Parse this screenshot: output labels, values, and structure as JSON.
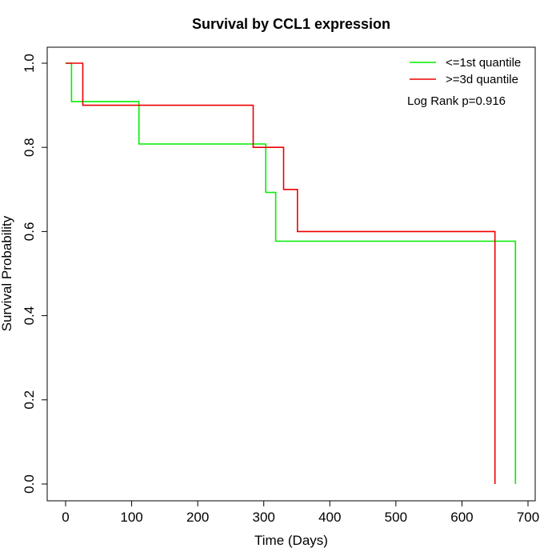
{
  "chart_data": {
    "type": "line",
    "subtype": "kaplan-meier step",
    "title": "Survival by CCL1 expression",
    "xlabel": "Time (Days)",
    "ylabel": "Survival Probability",
    "xlim": [
      0,
      700
    ],
    "ylim": [
      0,
      1
    ],
    "xticks": [
      0,
      100,
      200,
      300,
      400,
      500,
      600,
      700
    ],
    "yticks": [
      "0.0",
      "0.2",
      "0.4",
      "0.6",
      "0.8",
      "1.0"
    ],
    "grid": false,
    "legend_position": "top-right",
    "series": [
      {
        "name": "<=1st quantile",
        "color": "#00ee00",
        "x": [
          0,
          9,
          9,
          111,
          111,
          303,
          303,
          318,
          318,
          681,
          681
        ],
        "y": [
          1.0,
          1.0,
          0.909,
          0.909,
          0.808,
          0.808,
          0.693,
          0.693,
          0.577,
          0.577,
          0.0
        ]
      },
      {
        "name": ">=3d quantile",
        "color": "#ee0000",
        "x": [
          0,
          26,
          26,
          284,
          284,
          330,
          330,
          351,
          351,
          650,
          650
        ],
        "y": [
          1.0,
          1.0,
          0.9,
          0.9,
          0.8,
          0.8,
          0.7,
          0.7,
          0.6,
          0.6,
          0.0
        ]
      }
    ],
    "annotations": [
      "Log Rank p=0.916"
    ]
  }
}
